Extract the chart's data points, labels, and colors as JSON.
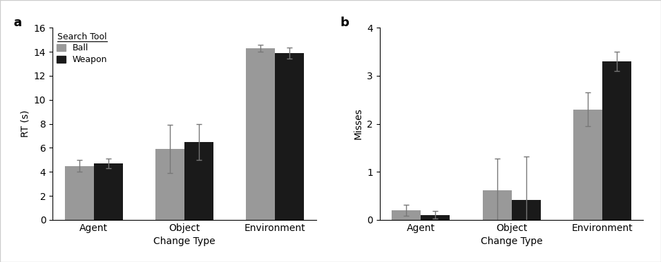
{
  "categories": [
    "Agent",
    "Object",
    "Environment"
  ],
  "subplot_a": {
    "title": "a",
    "ylabel": "RT (s)",
    "xlabel": "Change Type",
    "ylim": [
      0,
      16
    ],
    "yticks": [
      0,
      2,
      4,
      6,
      8,
      10,
      12,
      14,
      16
    ],
    "ball_values": [
      4.5,
      5.9,
      14.3
    ],
    "weapon_values": [
      4.7,
      6.5,
      13.9
    ],
    "ball_errors": [
      0.5,
      2.0,
      0.3
    ],
    "weapon_errors": [
      0.4,
      1.5,
      0.45
    ],
    "legend_title": "Search Tool",
    "legend_labels": [
      "Ball",
      "Weapon"
    ]
  },
  "subplot_b": {
    "title": "b",
    "ylabel": "Misses",
    "xlabel": "Change Type",
    "ylim": [
      0,
      4
    ],
    "yticks": [
      0,
      1,
      2,
      3,
      4
    ],
    "ball_values": [
      0.2,
      0.62,
      2.3
    ],
    "weapon_values": [
      0.1,
      0.42,
      3.3
    ],
    "ball_errors": [
      0.12,
      0.65,
      0.35
    ],
    "weapon_errors": [
      0.08,
      0.9,
      0.2
    ],
    "legend_labels": [
      "Ball",
      "Weapon"
    ]
  },
  "ball_color": "#999999",
  "weapon_color": "#1a1a1a",
  "bar_width": 0.32,
  "capsize": 3,
  "error_color": "#777777",
  "error_linewidth": 1.0,
  "background_color": "#ffffff",
  "font_size": 10,
  "label_fontsize": 10,
  "title_fontsize": 13,
  "legend_title_fontsize": 9,
  "legend_fontsize": 9,
  "border_color": "#cccccc",
  "border_linewidth": 1.0
}
